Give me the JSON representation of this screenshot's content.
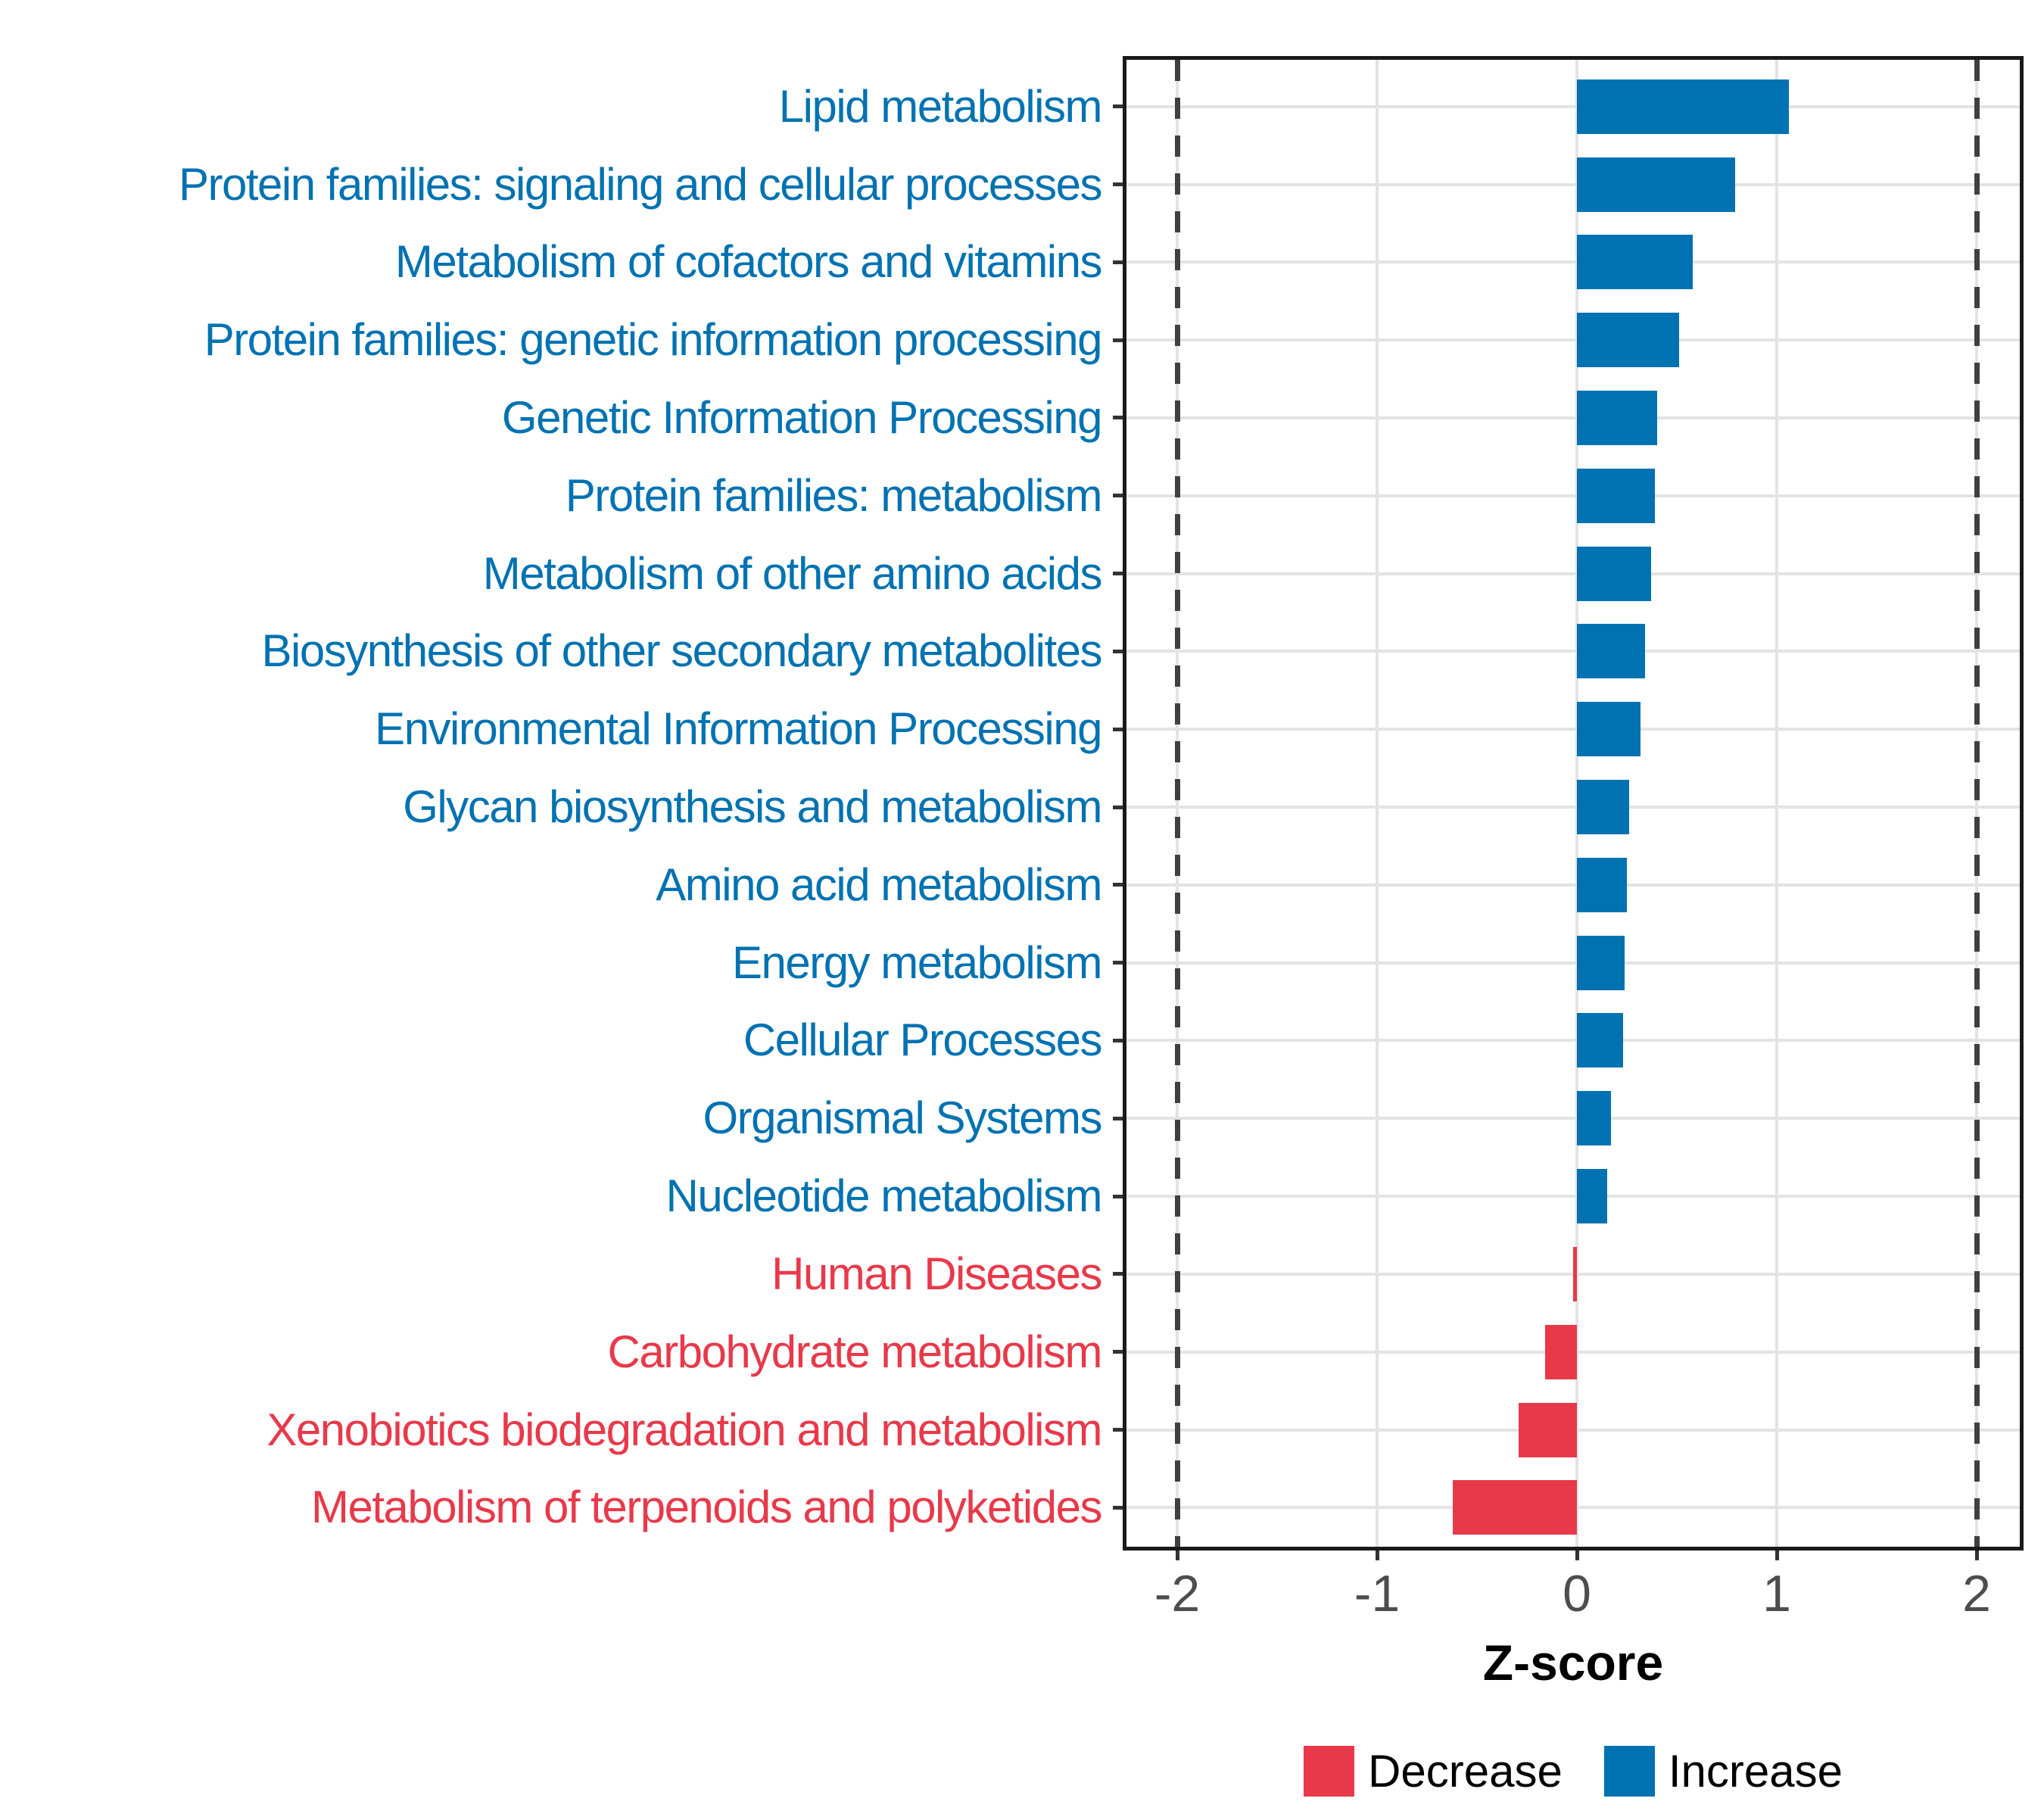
{
  "chart_data": {
    "type": "bar",
    "orientation": "horizontal",
    "title": "",
    "xlabel": "Z-score",
    "ylabel": "",
    "xlim": [
      -2.28,
      2.23
    ],
    "x_ticks": [
      -2,
      -1,
      0,
      1,
      2
    ],
    "x_tick_labels": [
      "-2",
      "-1",
      "0",
      "1",
      "2"
    ],
    "reference_lines_dashed_at": [
      -2,
      2
    ],
    "grid": true,
    "legend_position": "bottom",
    "rows": [
      {
        "label": "Lipid metabolism",
        "value": 1.06,
        "direction": "increase"
      },
      {
        "label": "Protein families: signaling and cellular processes",
        "value": 0.79,
        "direction": "increase"
      },
      {
        "label": "Metabolism of cofactors and vitamins",
        "value": 0.58,
        "direction": "increase"
      },
      {
        "label": "Protein families: genetic information processing",
        "value": 0.51,
        "direction": "increase"
      },
      {
        "label": "Genetic Information Processing",
        "value": 0.4,
        "direction": "increase"
      },
      {
        "label": "Protein families: metabolism",
        "value": 0.39,
        "direction": "increase"
      },
      {
        "label": "Metabolism of other amino acids",
        "value": 0.37,
        "direction": "increase"
      },
      {
        "label": "Biosynthesis of other secondary metabolites",
        "value": 0.34,
        "direction": "increase"
      },
      {
        "label": "Environmental Information Processing",
        "value": 0.32,
        "direction": "increase"
      },
      {
        "label": "Glycan biosynthesis and metabolism",
        "value": 0.26,
        "direction": "increase"
      },
      {
        "label": "Amino acid metabolism",
        "value": 0.25,
        "direction": "increase"
      },
      {
        "label": "Energy metabolism",
        "value": 0.24,
        "direction": "increase"
      },
      {
        "label": "Cellular Processes",
        "value": 0.23,
        "direction": "increase"
      },
      {
        "label": "Organismal Systems",
        "value": 0.17,
        "direction": "increase"
      },
      {
        "label": "Nucleotide metabolism",
        "value": 0.15,
        "direction": "increase"
      },
      {
        "label": "Human Diseases",
        "value": -0.02,
        "direction": "decrease"
      },
      {
        "label": "Carbohydrate metabolism",
        "value": -0.16,
        "direction": "decrease"
      },
      {
        "label": "Xenobiotics biodegradation and metabolism",
        "value": -0.29,
        "direction": "decrease"
      },
      {
        "label": "Metabolism of terpenoids and polyketides",
        "value": -0.62,
        "direction": "decrease"
      }
    ],
    "colors": {
      "increase": "#0072B2",
      "decrease": "#E8394A",
      "axis_text": "#4d4d4d",
      "gridline": "#e3e3e3",
      "reference_line": "#404040",
      "panel_border": "#1a1a1a"
    }
  },
  "legend": {
    "items": [
      {
        "label": "Decrease",
        "direction": "decrease",
        "color": "#E8394A"
      },
      {
        "label": "Increase",
        "direction": "increase",
        "color": "#0072B2"
      }
    ]
  }
}
